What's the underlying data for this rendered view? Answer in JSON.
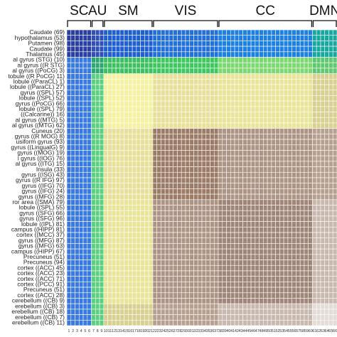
{
  "chart_data": {
    "type": "heatmap",
    "title": "",
    "networks": [
      {
        "label": "SC",
        "start": 1,
        "end": 6
      },
      {
        "label": "AU",
        "start": 7,
        "end": 9
      },
      {
        "label": "SM",
        "start": 10,
        "end": 21
      },
      {
        "label": "VIS",
        "start": 22,
        "end": 37
      },
      {
        "label": "CC",
        "start": 38,
        "end": 60
      },
      {
        "label": "DMN",
        "start": 61,
        "end": 66
      }
    ],
    "row_labels": [
      "Caudate (69)",
      "hypothalamus (53)",
      "Putamen (98)",
      "Caudate (99)",
      "Thalamus (45)",
      "al gyrus (STG) (10)",
      "al gyrus ((R STG)",
      "al gyrus ((PoCG) 3)",
      "tobule ((R PoCG) 11)",
      "lobule ((ParaCL) 1)",
      "lobule ((ParaCL) 27)",
      "gyrus ((SPL) 57)",
      "lobule ((SPL) 52)",
      "gyrus ((PoCG) 66)",
      "lobule ((SPL) 79)",
      "((Calcarine)) 16)",
      "al gyrus ((MTG) 5)",
      "al gyrus ((MTG) 62)",
      "Cuneus (20)",
      "gyrus ((R MOG) 8)",
      "usiform gyrus (93)",
      "gyrus ((LingualG) 9)",
      "gyrus ((MOG) 19)",
      "l gyrus ((IOG) 76)",
      "al gyrus ((ITG) 15)",
      "Insula (33)",
      "gyrus ((ISG) 43)",
      "gyrus ((R IFG) 97)",
      "gyrus ((IFG) 70)",
      "gyrus ((IFG) 24)",
      "gyrus ((MFG) 28)",
      "ror area ((SMA) 79)",
      "lobule ((SPL) 55)",
      "gyrus ((SFG) 66)",
      "gyrus ((SFG) 96)",
      "lobule ((IPL) 81)",
      "campus ((HIPP) 81)",
      "cortex ((MCC) 37)",
      "gyrus ((MFG) 87)",
      "gyrus ((MFG) 63)",
      "campus ((HIPP) 67)",
      "Precuneus (51)",
      "Precuneus (94)",
      "cortex ((ACC) 45)",
      "cortex ((ACC) 23)",
      "cortex ((ACC) 71)",
      "cortex ((PCC) 91)",
      "Precuneus (51)",
      "cortex ((ACC) 28)",
      "cerebellum ((CB) 9)",
      "erebellum ((CB) 3)",
      "erebellum ((CB) 18)",
      "erebellum ((CB) 7)",
      "erebellum ((CB) 11)"
    ],
    "palette": {
      "SC-SC": "#2a3fa0",
      "SC-AU": "#3050b8",
      "SC-SM": "#1f5fd0",
      "SC-VIS": "#2270d8",
      "SC-CC": "#1e80e0",
      "SC-DMN": "#18a8a0",
      "AU-AU": "#2aa870",
      "AU-SM": "#3cc060",
      "AU-VIS": "#40c860",
      "AU-CC": "#7cd870",
      "AU-DMN": "#60c870",
      "SM-SM": "#f4f2a0",
      "SM-VIS": "#e8e098",
      "SM-CC": "#e8e498",
      "SM-DMN": "#d8d090",
      "VIS-VIS": "#9c7c66",
      "VIS-CC": "#ad9484",
      "VIS-DMN": "#b8a090",
      "CC-CC": "#a08678",
      "CC-DMN": "#c8b8ae",
      "DMN-DMN": "#e4dcd6",
      "SC-rows-lower": "#3a7ae0",
      "AU-rows-lower": "#5ad080",
      "grid": "#ffffff"
    }
  }
}
